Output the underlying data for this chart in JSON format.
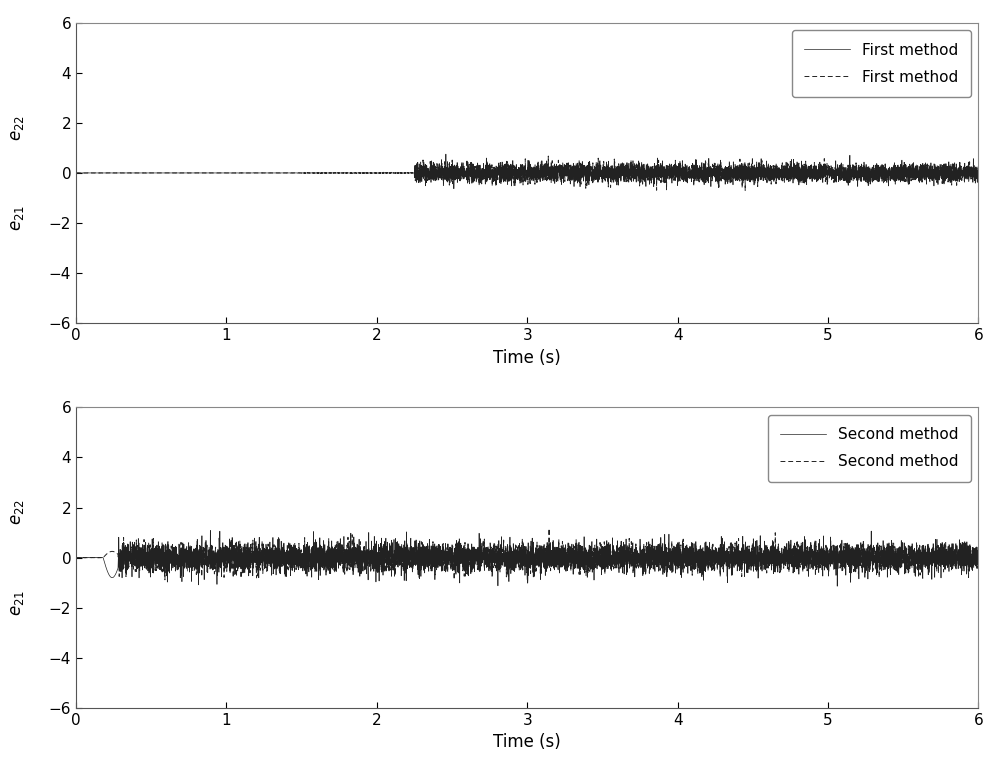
{
  "xlim": [
    0,
    6
  ],
  "ylim": [
    -6,
    6
  ],
  "yticks": [
    -6,
    -4,
    -2,
    0,
    2,
    4,
    6
  ],
  "xticks": [
    0,
    1,
    2,
    3,
    4,
    5,
    6
  ],
  "xlabel": "Time (s)",
  "legend1": [
    "First method",
    "First method"
  ],
  "legend2": [
    "Second method",
    "Second method"
  ],
  "bg_color": "#ffffff",
  "line_color": "#222222",
  "axes_color": "#888888",
  "seed": 42,
  "dt": 0.001,
  "t_end": 6.0,
  "plot1_noise_start": 2.25,
  "plot1_noise_amp": 0.28,
  "plot1_dashed_start": 1.5,
  "plot1_dashed_end": 2.25,
  "plot2_noise_start": 0.28,
  "plot2_noise_amp": 0.5,
  "plot2_spike_val": -1.0,
  "plot2_spike_start": 0.18,
  "plot2_spike_end": 0.3
}
